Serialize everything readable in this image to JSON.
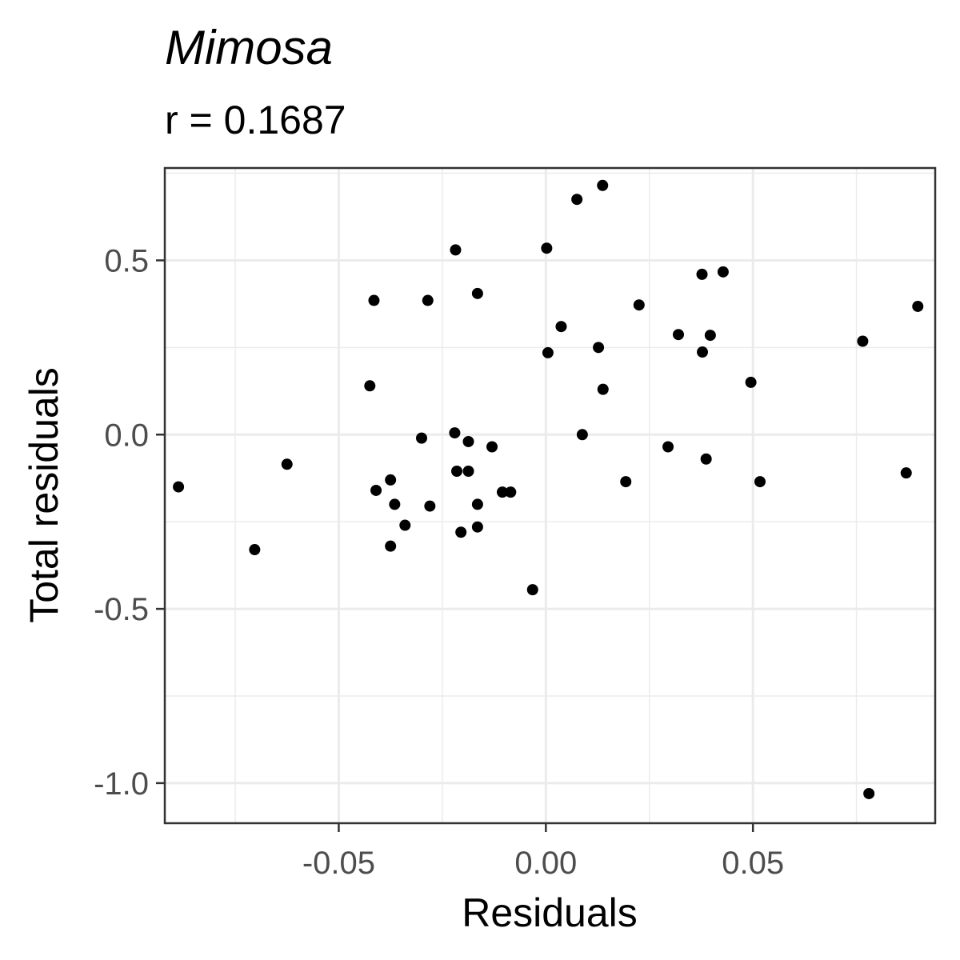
{
  "chart_data": {
    "type": "scatter",
    "title": "Mimosa",
    "subtitle": "r = 0.1687",
    "xlabel": "Residuals",
    "ylabel": "Total residuals",
    "xlim": [
      -0.092,
      0.094
    ],
    "ylim": [
      -1.115,
      0.765
    ],
    "x_ticks": [
      -0.05,
      0.0,
      0.05
    ],
    "x_tick_labels": [
      "-0.05",
      "0.00",
      "0.05"
    ],
    "y_ticks": [
      0.5,
      0.0,
      -0.5,
      -1.0
    ],
    "y_tick_labels": [
      "0.5",
      "0.0",
      "-0.5",
      "-1.0"
    ],
    "x_minor": [
      -0.075,
      -0.025,
      0.025,
      0.075
    ],
    "y_minor": [
      0.75,
      0.25,
      -0.25,
      -0.75
    ],
    "grid": true,
    "point_color": "#000000",
    "points": [
      {
        "x": -0.0887,
        "y": -0.15
      },
      {
        "x": -0.0703,
        "y": -0.33
      },
      {
        "x": -0.0625,
        "y": -0.085
      },
      {
        "x": -0.0425,
        "y": 0.14
      },
      {
        "x": -0.0415,
        "y": 0.385
      },
      {
        "x": -0.041,
        "y": -0.16
      },
      {
        "x": -0.0375,
        "y": -0.13
      },
      {
        "x": -0.0375,
        "y": -0.32
      },
      {
        "x": -0.0365,
        "y": -0.2
      },
      {
        "x": -0.034,
        "y": -0.26
      },
      {
        "x": -0.03,
        "y": -0.01
      },
      {
        "x": -0.0285,
        "y": 0.385
      },
      {
        "x": -0.028,
        "y": -0.205
      },
      {
        "x": -0.022,
        "y": 0.005
      },
      {
        "x": -0.0218,
        "y": 0.53
      },
      {
        "x": -0.0215,
        "y": -0.105
      },
      {
        "x": -0.0205,
        "y": -0.28
      },
      {
        "x": -0.0187,
        "y": -0.02
      },
      {
        "x": -0.0187,
        "y": -0.105
      },
      {
        "x": -0.0165,
        "y": 0.405
      },
      {
        "x": -0.0165,
        "y": -0.2
      },
      {
        "x": -0.0165,
        "y": -0.265
      },
      {
        "x": -0.013,
        "y": -0.035
      },
      {
        "x": -0.0105,
        "y": -0.165
      },
      {
        "x": -0.0085,
        "y": -0.165
      },
      {
        "x": -0.0032,
        "y": -0.445
      },
      {
        "x": 0.0002,
        "y": 0.535
      },
      {
        "x": 0.0005,
        "y": 0.235
      },
      {
        "x": 0.0037,
        "y": 0.31
      },
      {
        "x": 0.0075,
        "y": 0.675
      },
      {
        "x": 0.0088,
        "y": 0.0
      },
      {
        "x": 0.0127,
        "y": 0.25
      },
      {
        "x": 0.0137,
        "y": 0.715
      },
      {
        "x": 0.0138,
        "y": 0.13
      },
      {
        "x": 0.0193,
        "y": -0.135
      },
      {
        "x": 0.0225,
        "y": 0.372
      },
      {
        "x": 0.0295,
        "y": -0.035
      },
      {
        "x": 0.032,
        "y": 0.287
      },
      {
        "x": 0.0377,
        "y": 0.46
      },
      {
        "x": 0.0378,
        "y": 0.237
      },
      {
        "x": 0.0387,
        "y": -0.07
      },
      {
        "x": 0.0397,
        "y": 0.285
      },
      {
        "x": 0.0428,
        "y": 0.467
      },
      {
        "x": 0.0495,
        "y": 0.15
      },
      {
        "x": 0.0517,
        "y": -0.135
      },
      {
        "x": 0.0765,
        "y": 0.268
      },
      {
        "x": 0.078,
        "y": -1.03
      },
      {
        "x": 0.087,
        "y": -0.11
      },
      {
        "x": 0.0898,
        "y": 0.368
      }
    ]
  }
}
